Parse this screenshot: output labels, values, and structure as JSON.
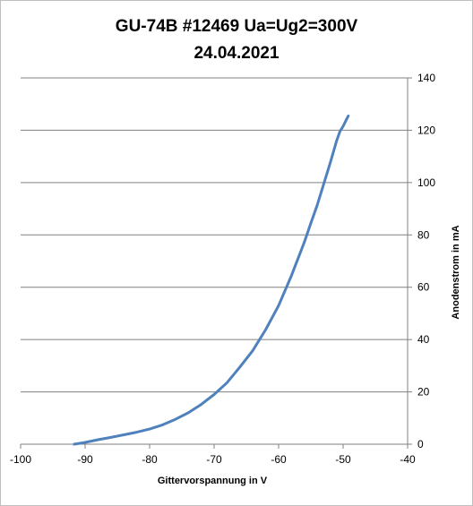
{
  "chart_data": {
    "type": "line",
    "title": "GU-74B #12469 Ua=Ug2=300V",
    "subtitle": "24.04.2021",
    "xlabel": "Gittervorspannung in V",
    "ylabel": "Anodenstrom in mA",
    "xlim": [
      -100,
      -40
    ],
    "ylim": [
      0,
      140
    ],
    "xticks": [
      -100,
      -90,
      -80,
      -70,
      -60,
      -50,
      -40
    ],
    "yticks": [
      0,
      20,
      40,
      60,
      80,
      100,
      120,
      140
    ],
    "y_axis_side": "right",
    "grid": "horizontal",
    "line_color": "#4f81bd",
    "series": [
      {
        "x": [
          -91.7,
          -90,
          -88,
          -86,
          -84,
          -82,
          -80,
          -78,
          -76,
          -74,
          -72,
          -70,
          -68,
          -66,
          -64,
          -62,
          -60,
          -58,
          -56,
          -55,
          -54,
          -53,
          -52,
          -51,
          -50.5,
          -50,
          -49.5,
          -49.2
        ],
        "values": [
          0,
          0.7,
          1.7,
          2.6,
          3.6,
          4.6,
          5.8,
          7.4,
          9.5,
          12,
          15.2,
          19,
          23.5,
          29.5,
          35.8,
          43.8,
          53,
          64.5,
          77.3,
          84.5,
          91.5,
          99.5,
          107.5,
          116,
          119.5,
          121.5,
          124,
          125.5
        ]
      }
    ]
  }
}
